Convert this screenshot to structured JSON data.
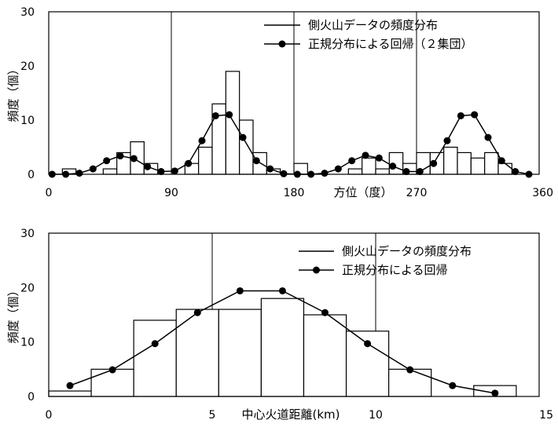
{
  "chart_data": [
    {
      "type": "bar",
      "xlabel": "方位（度）",
      "ylabel": "頻度（個）",
      "xlim": [
        0,
        360
      ],
      "ylim": [
        0,
        30
      ],
      "x_ticks": [
        "0",
        "90",
        "180",
        "270",
        "360"
      ],
      "y_ticks": [
        "0",
        "10",
        "20",
        "30"
      ],
      "grid": "vertical lines at 90, 180, 270",
      "legend": "top-right",
      "bin_width": 10,
      "histogram": {
        "name": "側火山データの頻度分布",
        "bin_starts": [
          10,
          40,
          50,
          60,
          70,
          100,
          110,
          120,
          130,
          140,
          150,
          160,
          180,
          220,
          230,
          240,
          250,
          260,
          270,
          280,
          290,
          300,
          310,
          320,
          330
        ],
        "values": [
          1,
          1,
          4,
          6,
          2,
          2,
          5,
          13,
          19,
          10,
          4,
          1,
          2,
          1,
          3,
          1,
          4,
          2,
          4,
          4,
          5,
          4,
          3,
          4,
          2
        ]
      },
      "fit": {
        "name": "正規分布による回帰（２集団）",
        "x": [
          2.5,
          12.5,
          22.5,
          32.5,
          42.5,
          52.5,
          62.5,
          72.5,
          82.5,
          92.5,
          102.5,
          112.5,
          122.5,
          132.5,
          142.5,
          152.5,
          162.5,
          172.5,
          182.5,
          192.5,
          202.5,
          212.5,
          222.5,
          232.5,
          242.5,
          252.5,
          262.5,
          272.5,
          282.5,
          292.5,
          302.5,
          312.5,
          322.5,
          332.5,
          342.5,
          352.5
        ],
        "y": [
          0,
          0,
          0.2,
          1,
          2.5,
          3.4,
          2.9,
          1.4,
          0.5,
          0.6,
          2,
          6.2,
          10.8,
          11,
          6.8,
          2.5,
          1,
          0.1,
          0,
          0,
          0.2,
          1,
          2.5,
          3.5,
          3,
          1.5,
          0.5,
          0.5,
          2,
          6.2,
          10.8,
          11,
          6.8,
          2.5,
          0.5,
          0
        ]
      }
    },
    {
      "type": "bar",
      "xlabel": "中心火道距離(km)",
      "ylabel": "頻度（個）",
      "xlim": [
        0,
        15
      ],
      "ylim": [
        0,
        30
      ],
      "x_ticks": [
        "0",
        "5",
        "10",
        "15"
      ],
      "y_ticks": [
        "0",
        "10",
        "20",
        "30"
      ],
      "grid": "vertical lines at 5, 10",
      "legend": "top-right",
      "bin_width": 1.3,
      "histogram": {
        "name": "側火山データの頻度分布",
        "bin_starts": [
          0,
          1.3,
          2.6,
          3.9,
          5.2,
          6.5,
          7.8,
          9.1,
          10.4,
          11.7,
          13.0
        ],
        "values": [
          1,
          5,
          14,
          16,
          16,
          18,
          15,
          12,
          5,
          0,
          2
        ]
      },
      "fit": {
        "name": "正規分布による回帰",
        "x": [
          0.65,
          1.95,
          3.25,
          4.55,
          5.85,
          7.15,
          8.45,
          9.75,
          11.05,
          12.35,
          13.65
        ],
        "y": [
          2,
          4.9,
          9.7,
          15.4,
          19.4,
          19.4,
          15.4,
          9.7,
          4.9,
          2,
          0.6
        ]
      }
    }
  ]
}
